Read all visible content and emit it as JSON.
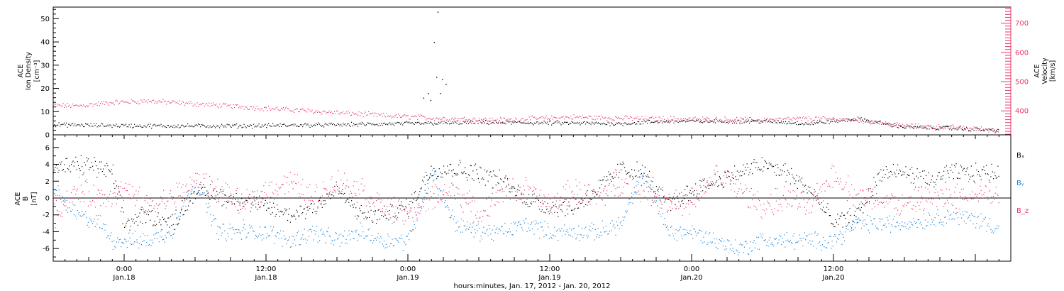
{
  "chart_data": [
    {
      "type": "scatter",
      "panel": "plasma",
      "ylabel_left": [
        "ACE",
        "Ion Density",
        "[cm⁻³]"
      ],
      "ylabel_right": [
        "ACE",
        "Velocity",
        "[km/s]"
      ],
      "y_left_ticks": [
        "0",
        "10",
        "20",
        "30",
        "40",
        "50"
      ],
      "y_left_lim": [
        0,
        55
      ],
      "y_right_ticks": [
        "400",
        "500",
        "600",
        "700"
      ],
      "y_right_lim": [
        318,
        755
      ],
      "x_hours_lim": [
        0,
        81
      ],
      "colors": {
        "density": "#000000",
        "velocity": "#e8396a"
      },
      "density_trend": [
        [
          0,
          4.5
        ],
        [
          8,
          4
        ],
        [
          16,
          4
        ],
        [
          24,
          4.5
        ],
        [
          36,
          5.5
        ],
        [
          48,
          5
        ],
        [
          52,
          6
        ],
        [
          56,
          6
        ],
        [
          60,
          6
        ],
        [
          64,
          5
        ],
        [
          68,
          7
        ],
        [
          72,
          3.5
        ],
        [
          76,
          3
        ],
        [
          80,
          2
        ]
      ],
      "velocity_trend": [
        [
          0,
          420
        ],
        [
          2,
          418
        ],
        [
          5,
          430
        ],
        [
          8,
          435
        ],
        [
          12,
          425
        ],
        [
          18,
          410
        ],
        [
          24,
          395
        ],
        [
          28,
          385
        ],
        [
          33,
          375
        ],
        [
          38,
          370
        ],
        [
          44,
          380
        ],
        [
          50,
          375
        ],
        [
          56,
          372
        ],
        [
          60,
          370
        ],
        [
          64,
          375
        ],
        [
          68,
          370
        ],
        [
          72,
          350
        ],
        [
          76,
          345
        ],
        [
          80,
          335
        ]
      ],
      "density_outliers": [
        [
          32.5,
          53
        ],
        [
          32.2,
          40
        ],
        [
          32.4,
          25
        ],
        [
          32.9,
          24
        ],
        [
          31.7,
          18
        ],
        [
          31.3,
          16
        ],
        [
          33.2,
          22
        ],
        [
          31.9,
          15
        ],
        [
          32.7,
          18
        ]
      ]
    },
    {
      "type": "scatter",
      "panel": "magnetic",
      "ylabel_left": [
        "ACE",
        "B",
        "[nT]"
      ],
      "y_ticks": [
        "-6",
        "-4",
        "-2",
        "0",
        "2",
        "4",
        "6"
      ],
      "y_lim": [
        -7.5,
        7.5
      ],
      "legend": [
        "Bₓ",
        "Bᵧ",
        "B_z"
      ],
      "legend_sub": [
        "x",
        "y",
        "z"
      ],
      "colors": {
        "Bx": "#000000",
        "By": "#1a84d8",
        "Bz": "#e8396a"
      },
      "Bx_trend": [
        [
          0,
          3.5
        ],
        [
          3,
          4
        ],
        [
          5,
          3
        ],
        [
          6,
          -3
        ],
        [
          8,
          -2
        ],
        [
          10,
          -3
        ],
        [
          12,
          1
        ],
        [
          15,
          0
        ],
        [
          18,
          -1
        ],
        [
          20,
          -2
        ],
        [
          22,
          -1
        ],
        [
          24,
          1
        ],
        [
          26,
          -2
        ],
        [
          28,
          -2
        ],
        [
          30,
          -1
        ],
        [
          32,
          3.5
        ],
        [
          34,
          3.5
        ],
        [
          36,
          3
        ],
        [
          38,
          2
        ],
        [
          40,
          0
        ],
        [
          42,
          -1
        ],
        [
          44,
          -1
        ],
        [
          46,
          1
        ],
        [
          48,
          3.5
        ],
        [
          50,
          3
        ],
        [
          52,
          -1
        ],
        [
          54,
          1
        ],
        [
          56,
          2
        ],
        [
          58,
          3
        ],
        [
          60,
          4
        ],
        [
          62,
          3
        ],
        [
          64,
          1
        ],
        [
          66,
          -3
        ],
        [
          68,
          -2
        ],
        [
          70,
          3
        ],
        [
          72,
          3
        ],
        [
          74,
          2
        ],
        [
          76,
          3
        ],
        [
          78,
          3
        ],
        [
          80,
          3
        ]
      ],
      "By_trend": [
        [
          0,
          1
        ],
        [
          2,
          -2
        ],
        [
          4,
          -3
        ],
        [
          5,
          -5
        ],
        [
          8,
          -5
        ],
        [
          10,
          -4
        ],
        [
          12,
          2
        ],
        [
          14,
          -4
        ],
        [
          16,
          -4
        ],
        [
          18,
          -4
        ],
        [
          20,
          -5
        ],
        [
          22,
          -4
        ],
        [
          24,
          -5
        ],
        [
          26,
          -4
        ],
        [
          28,
          -5
        ],
        [
          30,
          -5
        ],
        [
          32,
          3
        ],
        [
          34,
          -3
        ],
        [
          36,
          -4
        ],
        [
          38,
          -4
        ],
        [
          40,
          -3
        ],
        [
          42,
          -4
        ],
        [
          44,
          -4
        ],
        [
          46,
          -4
        ],
        [
          48,
          -3
        ],
        [
          50,
          3
        ],
        [
          52,
          -4
        ],
        [
          54,
          -4
        ],
        [
          56,
          -5
        ],
        [
          58,
          -6
        ],
        [
          60,
          -5
        ],
        [
          62,
          -5
        ],
        [
          64,
          -5
        ],
        [
          66,
          -5
        ],
        [
          68,
          -3
        ],
        [
          70,
          -3
        ],
        [
          72,
          -3
        ],
        [
          74,
          -2.5
        ],
        [
          76,
          -2
        ],
        [
          78,
          -2.5
        ],
        [
          80,
          -3.5
        ]
      ],
      "Bz_trend": [
        [
          0,
          -2
        ],
        [
          2,
          1
        ],
        [
          4,
          0
        ],
        [
          6,
          1
        ],
        [
          8,
          -1
        ],
        [
          10,
          0
        ],
        [
          12,
          2
        ],
        [
          14,
          1
        ],
        [
          16,
          -1
        ],
        [
          18,
          1
        ],
        [
          20,
          2
        ],
        [
          22,
          0
        ],
        [
          24,
          2
        ],
        [
          26,
          1
        ],
        [
          28,
          -1
        ],
        [
          30,
          -2
        ],
        [
          32,
          0
        ],
        [
          34,
          1
        ],
        [
          36,
          -2
        ],
        [
          38,
          1
        ],
        [
          40,
          1
        ],
        [
          42,
          -1
        ],
        [
          44,
          1
        ],
        [
          46,
          0
        ],
        [
          48,
          2
        ],
        [
          50,
          1
        ],
        [
          52,
          0
        ],
        [
          54,
          -1
        ],
        [
          56,
          3
        ],
        [
          58,
          1
        ],
        [
          60,
          -1
        ],
        [
          62,
          0
        ],
        [
          64,
          -1
        ],
        [
          66,
          3
        ],
        [
          68,
          0
        ],
        [
          70,
          0
        ],
        [
          72,
          -1
        ],
        [
          74,
          0
        ],
        [
          76,
          0
        ],
        [
          78,
          1
        ],
        [
          80,
          0
        ]
      ]
    }
  ],
  "x_axis": {
    "tick_labels": [
      {
        "hour": 6,
        "time": "0:00",
        "date": "Jan.18"
      },
      {
        "hour": 18,
        "time": "12:00",
        "date": "Jan.18"
      },
      {
        "hour": 30,
        "time": "0:00",
        "date": "Jan.19"
      },
      {
        "hour": 42,
        "time": "12:00",
        "date": "Jan.19"
      },
      {
        "hour": 54,
        "time": "0:00",
        "date": "Jan.20"
      },
      {
        "hour": 66,
        "time": "12:00",
        "date": "Jan.20"
      }
    ],
    "title": "hours:minutes, Jan. 17, 2012 - Jan. 20, 2012"
  }
}
